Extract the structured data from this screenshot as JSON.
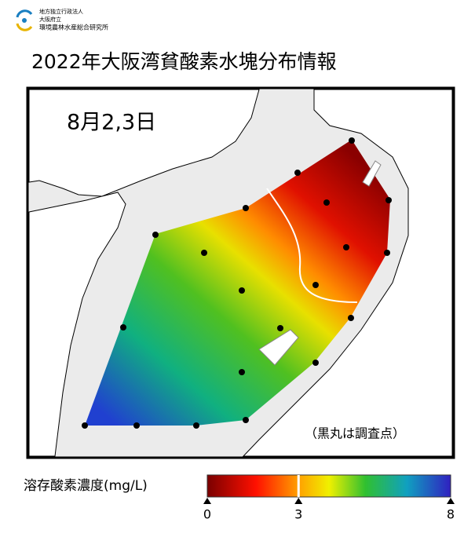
{
  "header": {
    "org": [
      "地方独立行政法人",
      "大阪府立",
      "環境農林水産総合研究所"
    ],
    "title": "2022年大阪湾貧酸素水塊分布情報"
  },
  "map": {
    "date": "8月2,3日",
    "note": "（黒丸は調査点）"
  },
  "legend": {
    "label": "溶存酸素濃度(mg/L)",
    "lim": [
      0,
      8
    ],
    "ticks": [
      0,
      3,
      8
    ]
  }
}
